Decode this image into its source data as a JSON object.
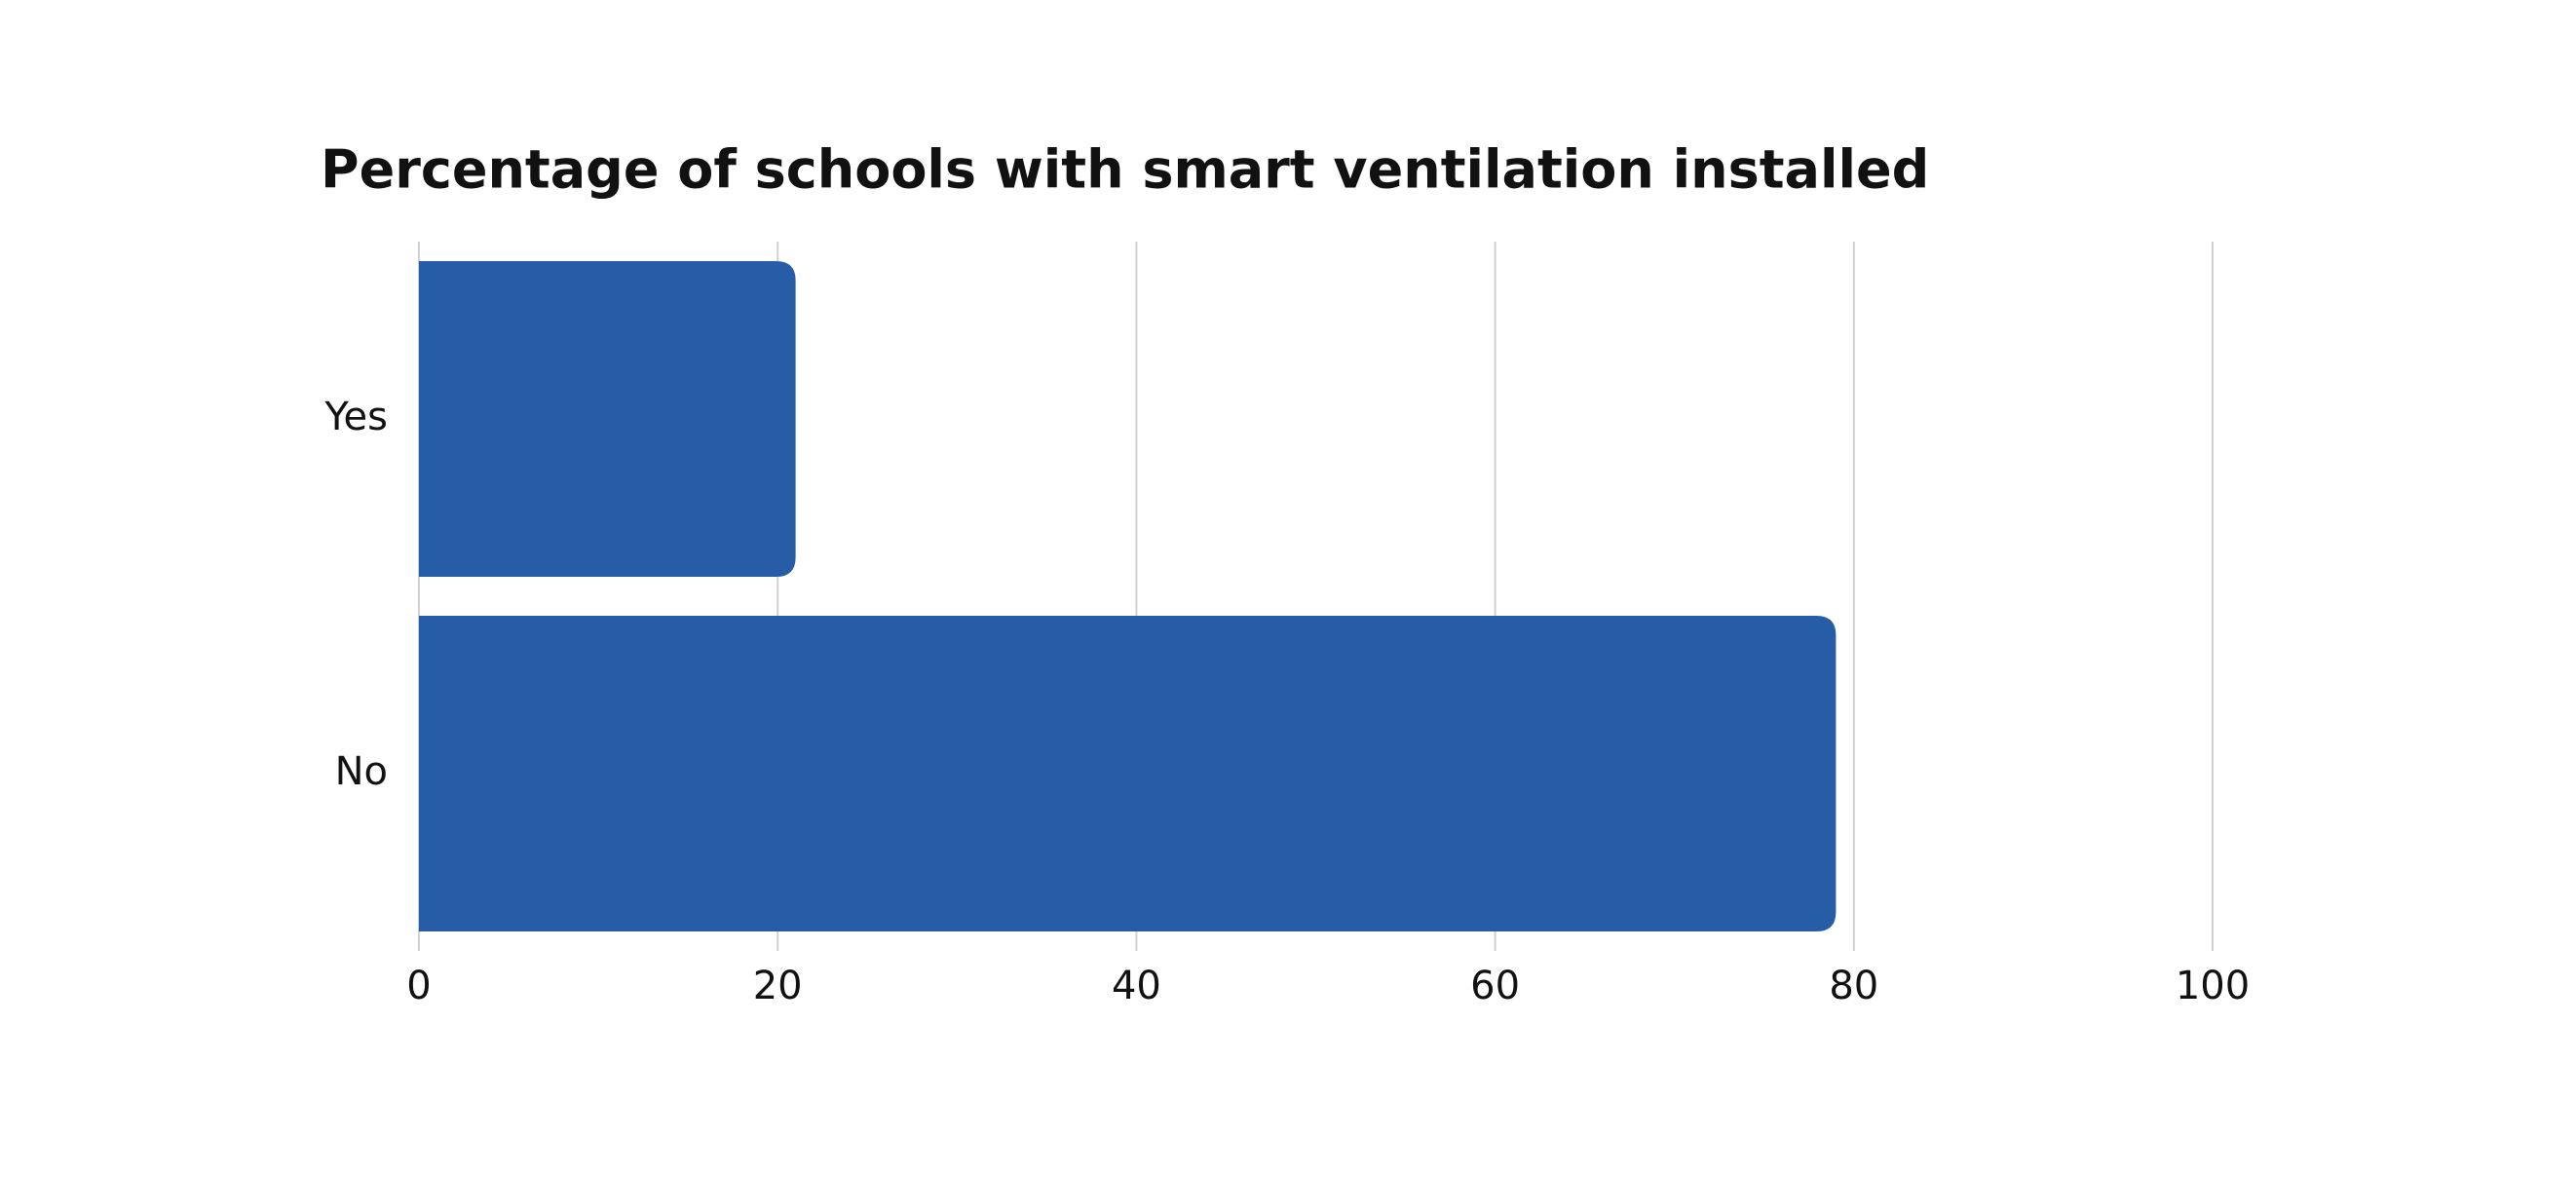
{
  "chart_data": {
    "type": "hbar",
    "title": "Percentage of schools with smart ventilation installed",
    "categories": [
      "Yes",
      "No"
    ],
    "values": [
      21,
      79
    ],
    "color": "#265da6",
    "xlim": [
      0,
      100
    ],
    "xticks": [
      0,
      20,
      40,
      60,
      80,
      100
    ],
    "grid": true
  }
}
